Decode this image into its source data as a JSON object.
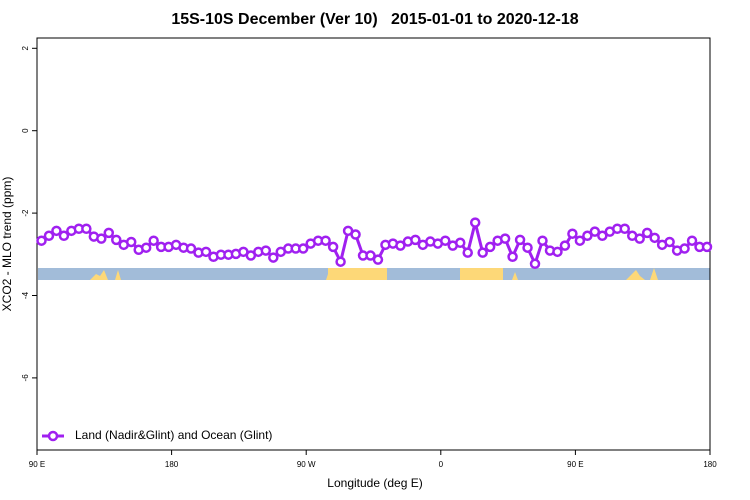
{
  "chart_data": {
    "type": "line",
    "title": "15S-10S December (Ver 10)   2015-01-01 to 2020-12-18",
    "x_label": "Longitude (deg E)",
    "y_label": "XCO2 - MLO trend (ppm)",
    "xlim": [
      90,
      540
    ],
    "ylim": [
      -7.75,
      2.25
    ],
    "xticks": [
      {
        "value": 90,
        "label": "90 E"
      },
      {
        "value": 180,
        "label": "180"
      },
      {
        "value": 270,
        "label": "90 W"
      },
      {
        "value": 360,
        "label": "0"
      },
      {
        "value": 450,
        "label": "90 E"
      },
      {
        "value": 540,
        "label": "180"
      }
    ],
    "yticks": [
      2,
      0,
      -2,
      -4,
      -6
    ],
    "legend": "bottom-left",
    "x": [
      93,
      98,
      103,
      108,
      113,
      118,
      123,
      128,
      133,
      138,
      143,
      148,
      153,
      158,
      163,
      168,
      173,
      178,
      183,
      188,
      193,
      198,
      203,
      208,
      213,
      218,
      223,
      228,
      233,
      238,
      243,
      248,
      253,
      258,
      263,
      268,
      273,
      278,
      283,
      288,
      293,
      298,
      303,
      308,
      313,
      318,
      323,
      328,
      333,
      338,
      343,
      348,
      353,
      358,
      363,
      368,
      373,
      378,
      383,
      388,
      393,
      398,
      403,
      408,
      413,
      418,
      423,
      428,
      433,
      438,
      443,
      448,
      453,
      458,
      463,
      468,
      473,
      478,
      483,
      488,
      493,
      498,
      503,
      508,
      513,
      518,
      523,
      528,
      533,
      538
    ],
    "series": [
      {
        "name": "Land (Nadir&Glint) and Ocean (Glint)",
        "color": "#a020f0",
        "values": [
          -2.67,
          -2.55,
          -2.43,
          -2.55,
          -2.43,
          -2.38,
          -2.38,
          -2.57,
          -2.62,
          -2.48,
          -2.65,
          -2.77,
          -2.7,
          -2.89,
          -2.84,
          -2.67,
          -2.82,
          -2.82,
          -2.77,
          -2.84,
          -2.86,
          -2.96,
          -2.94,
          -3.06,
          -3.01,
          -3.01,
          -2.99,
          -2.94,
          -3.03,
          -2.94,
          -2.91,
          -3.08,
          -2.94,
          -2.86,
          -2.86,
          -2.86,
          -2.74,
          -2.67,
          -2.67,
          -2.82,
          -3.18,
          -2.43,
          -2.52,
          -3.03,
          -3.03,
          -3.13,
          -2.77,
          -2.74,
          -2.79,
          -2.69,
          -2.65,
          -2.77,
          -2.69,
          -2.74,
          -2.67,
          -2.79,
          -2.72,
          -2.96,
          -2.23,
          -2.96,
          -2.82,
          -2.67,
          -2.62,
          -3.06,
          -2.65,
          -2.84,
          -3.23,
          -2.67,
          -2.91,
          -2.94,
          -2.79,
          -2.5,
          -2.67,
          -2.55,
          -2.45,
          -2.55,
          -2.45,
          -2.38,
          -2.38,
          -2.55,
          -2.62,
          -2.48,
          -2.6,
          -2.77,
          -2.7,
          -2.91,
          -2.86,
          -2.67,
          -2.82,
          -2.82
        ]
      }
    ]
  }
}
